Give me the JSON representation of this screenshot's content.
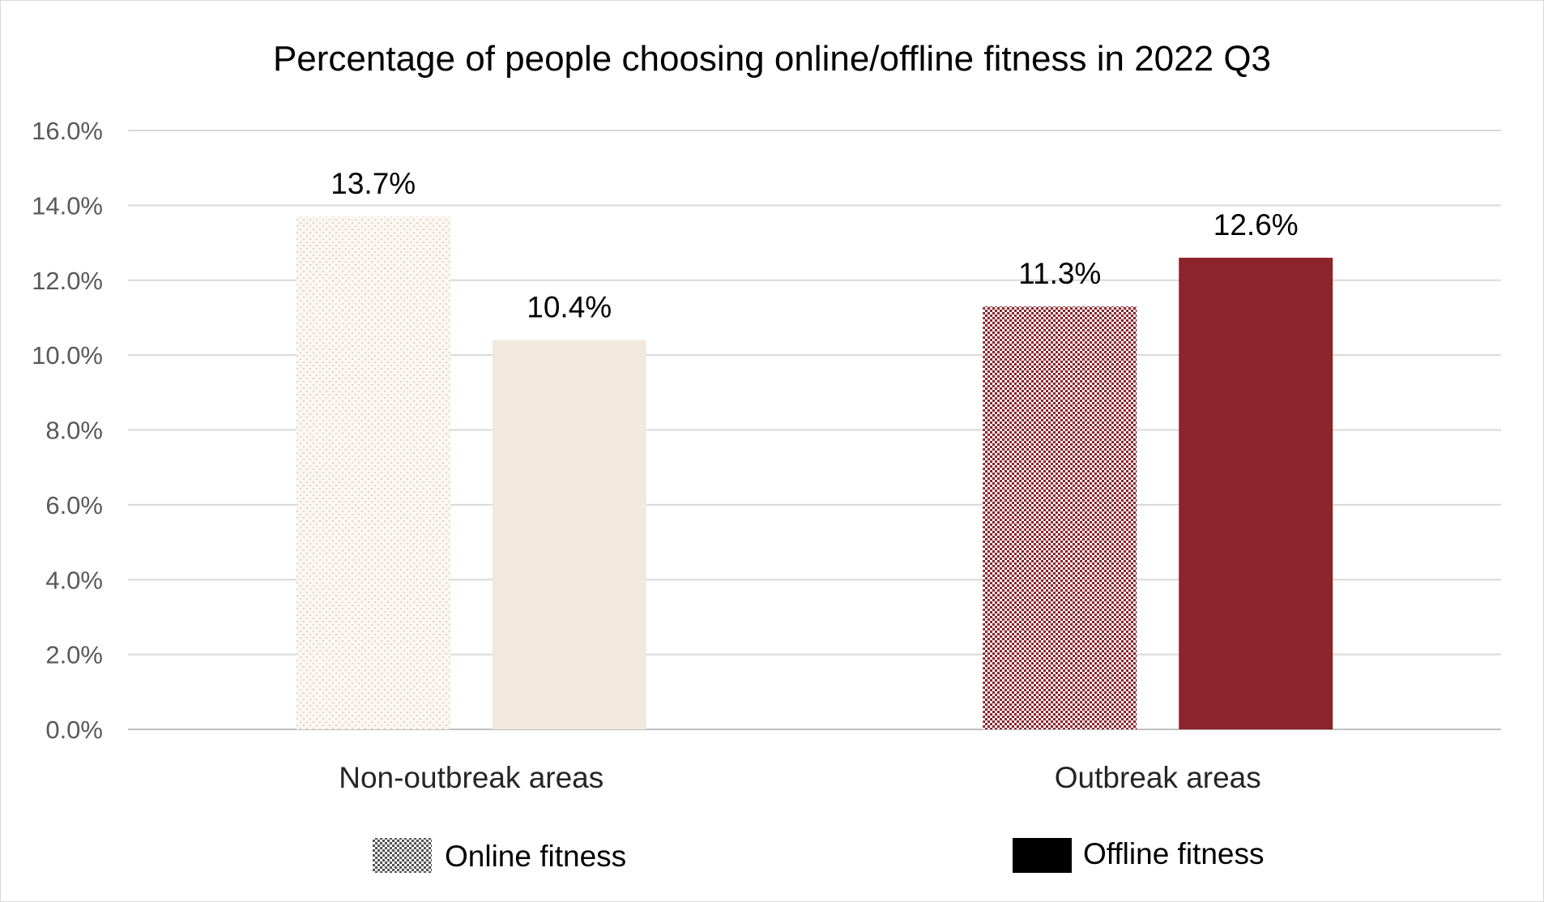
{
  "chart_data": {
    "type": "bar",
    "title": "Percentage of people choosing online/offline fitness in 2022 Q3",
    "xlabel": "",
    "ylabel": "",
    "categories": [
      "Non-outbreak areas",
      "Outbreak areas"
    ],
    "series": [
      {
        "name": "Online fitness",
        "values": [
          13.7,
          11.3
        ],
        "data_labels": [
          "13.7%",
          "11.3%"
        ],
        "pattern": "dotted",
        "bar_colors": [
          "#f2e9de",
          "#8b242b"
        ]
      },
      {
        "name": "Offline fitness",
        "values": [
          10.4,
          12.6
        ],
        "data_labels": [
          "10.4%",
          "12.6%"
        ],
        "pattern": "solid",
        "bar_colors": [
          "#f2e9de",
          "#8b242b"
        ]
      }
    ],
    "ylim": [
      0,
      16
    ],
    "yticks": [
      0,
      2,
      4,
      6,
      8,
      10,
      12,
      14,
      16
    ],
    "ytick_labels": [
      "0.0%",
      "2.0%",
      "4.0%",
      "6.0%",
      "8.0%",
      "10.0%",
      "12.0%",
      "14.0%",
      "16.0%"
    ],
    "grid": true,
    "legend_position": "bottom",
    "legend_swatch_colors": [
      "#7f7f7f",
      "#000000"
    ],
    "colors": {
      "grid": "#d9d9d9",
      "axis": "#bfbfbf",
      "light_pattern_bg": "#fbf8f4"
    }
  }
}
